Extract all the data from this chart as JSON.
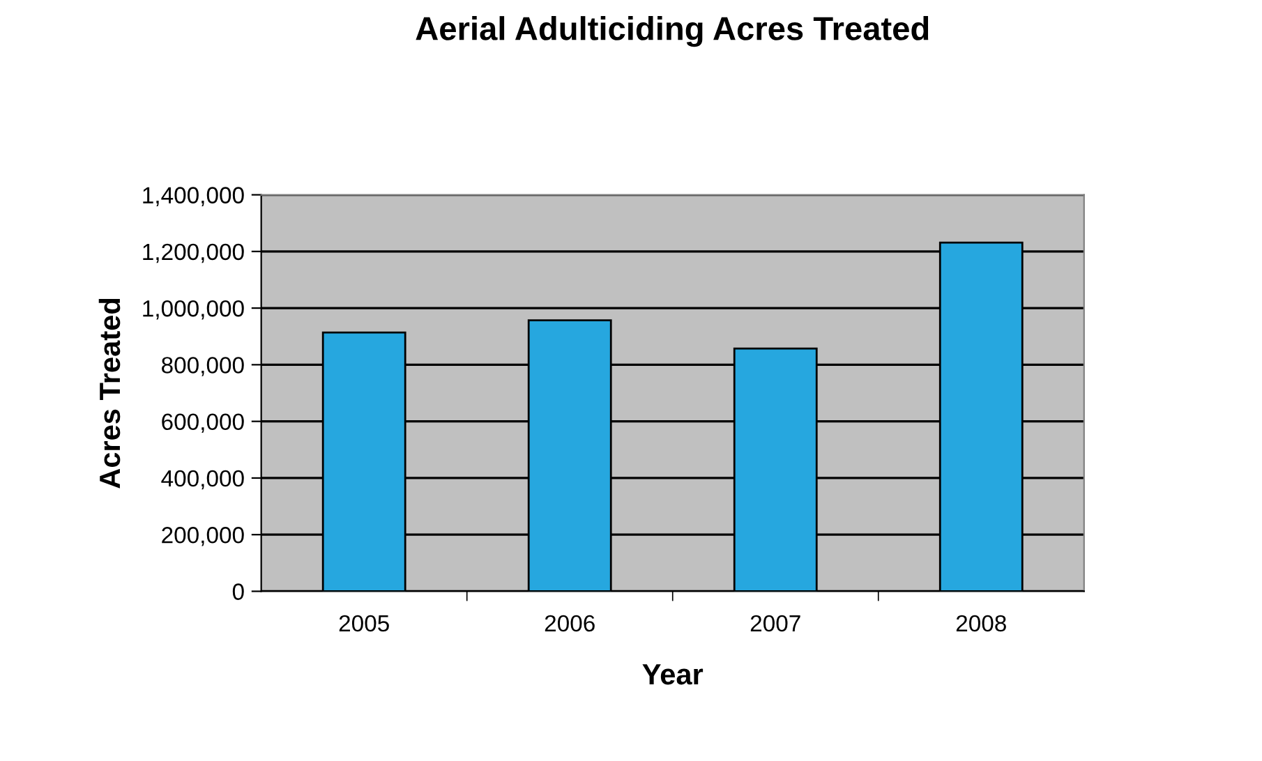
{
  "chart_data": {
    "type": "bar",
    "title": "Aerial Adulticiding Acres Treated",
    "xlabel": "Year",
    "ylabel": "Acres Treated",
    "categories": [
      "2005",
      "2006",
      "2007",
      "2008"
    ],
    "values": [
      914000,
      957000,
      857000,
      1231000
    ],
    "color": "#26a7df",
    "ylim": [
      0,
      1400000
    ],
    "yticks": [
      {
        "value": 0,
        "label": "0"
      },
      {
        "value": 200000,
        "label": "200,000"
      },
      {
        "value": 400000,
        "label": "400,000"
      },
      {
        "value": 600000,
        "label": "600,000"
      },
      {
        "value": 800000,
        "label": "800,000"
      },
      {
        "value": 1000000,
        "label": "1,000,000"
      },
      {
        "value": 1200000,
        "label": "1,200,000"
      },
      {
        "value": 1400000,
        "label": "1,400,000"
      }
    ],
    "grid": "y",
    "legend": false
  }
}
